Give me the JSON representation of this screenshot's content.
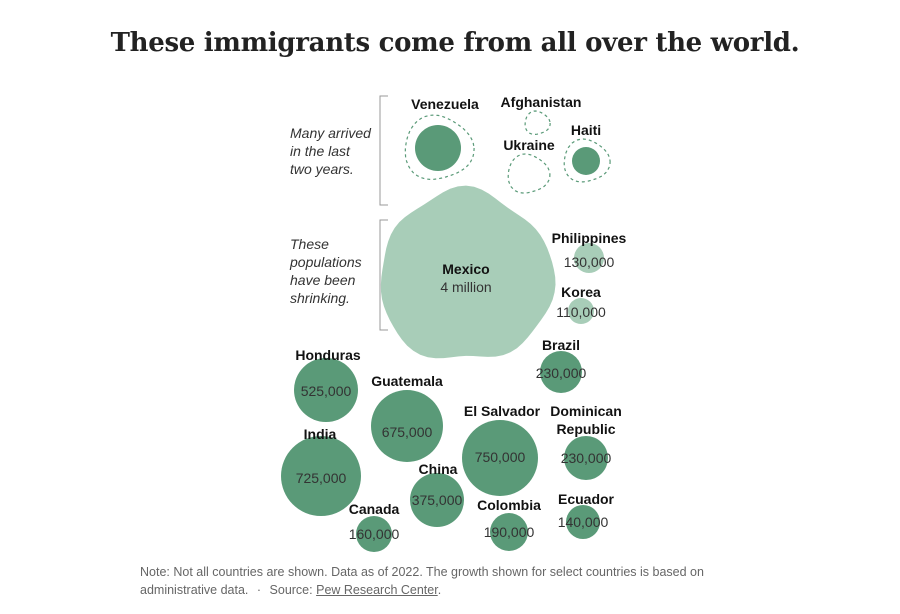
{
  "title": "These immigrants come from all over the world.",
  "note": {
    "text": "Note: Not all countries are shown. Data as of 2022. The growth shown for select countries is based on administrative data.",
    "separator": "·",
    "source_prefix": "Source:",
    "source_link": "Pew Research Center",
    "source_suffix": "."
  },
  "colors": {
    "established": "#5a9a78",
    "mexico": "#a8cdb8",
    "shrinking": "#a8cdb8",
    "growth_dashed": "#5a9a78",
    "bracket": "#999999"
  },
  "chart_data": {
    "type": "bubble",
    "title": "These immigrants come from all over the world.",
    "groups": [
      {
        "key": "recent",
        "annotation": [
          "Many arrived",
          "in the last",
          "two years."
        ]
      },
      {
        "key": "shrinking",
        "annotation": [
          "These",
          "populations",
          "have been",
          "shrinking."
        ]
      }
    ],
    "bubbles": [
      {
        "country": "Venezuela",
        "value": null,
        "value_label": "",
        "group": "recent"
      },
      {
        "country": "Afghanistan",
        "value": null,
        "value_label": "",
        "group": "recent"
      },
      {
        "country": "Ukraine",
        "value": null,
        "value_label": "",
        "group": "recent"
      },
      {
        "country": "Haiti",
        "value": null,
        "value_label": "",
        "group": "recent"
      },
      {
        "country": "Mexico",
        "value": 4000000,
        "value_label": "4 million",
        "group": "shrinking"
      },
      {
        "country": "Philippines",
        "value": 130000,
        "value_label": "130,000",
        "group": "shrinking"
      },
      {
        "country": "Korea",
        "value": 110000,
        "value_label": "110,000",
        "group": "shrinking"
      },
      {
        "country": "Brazil",
        "value": 230000,
        "value_label": "230,000",
        "group": "other"
      },
      {
        "country": "Honduras",
        "value": 525000,
        "value_label": "525,000",
        "group": "other"
      },
      {
        "country": "Guatemala",
        "value": 675000,
        "value_label": "675,000",
        "group": "other"
      },
      {
        "country": "India",
        "value": 725000,
        "value_label": "725,000",
        "group": "other"
      },
      {
        "country": "El Salvador",
        "value": 750000,
        "value_label": "750,000",
        "group": "other"
      },
      {
        "country": "Dominican Republic",
        "value": 230000,
        "value_label": "230,000",
        "group": "other"
      },
      {
        "country": "China",
        "value": 375000,
        "value_label": "375,000",
        "group": "other"
      },
      {
        "country": "Canada",
        "value": 160000,
        "value_label": "160,000",
        "group": "other"
      },
      {
        "country": "Colombia",
        "value": 190000,
        "value_label": "190,000",
        "group": "other"
      },
      {
        "country": "Ecuador",
        "value": 140000,
        "value_label": "140,000",
        "group": "other"
      }
    ]
  }
}
